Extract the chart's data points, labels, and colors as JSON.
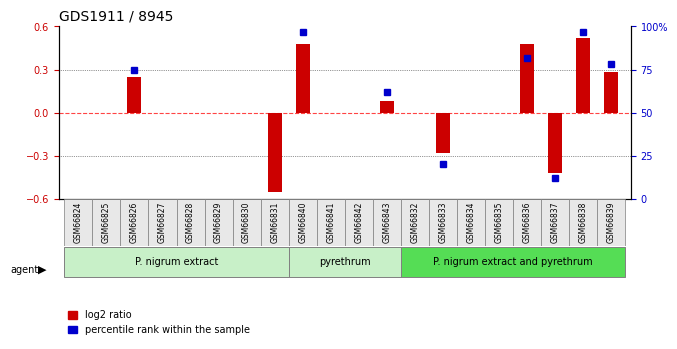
{
  "title": "GDS1911 / 8945",
  "samples": [
    "GSM66824",
    "GSM66825",
    "GSM66826",
    "GSM66827",
    "GSM66828",
    "GSM66829",
    "GSM66830",
    "GSM66831",
    "GSM66840",
    "GSM66841",
    "GSM66842",
    "GSM66843",
    "GSM66832",
    "GSM66833",
    "GSM66834",
    "GSM66835",
    "GSM66836",
    "GSM66837",
    "GSM66838",
    "GSM66839"
  ],
  "log2_ratio": [
    0,
    0,
    0.25,
    0,
    0,
    0,
    0,
    -0.55,
    0.48,
    0,
    0,
    0.08,
    0,
    -0.28,
    0,
    0,
    0.48,
    -0.42,
    0.52,
    0.28
  ],
  "percentile": [
    null,
    null,
    75,
    null,
    null,
    null,
    null,
    null,
    97,
    null,
    null,
    62,
    null,
    20,
    null,
    null,
    82,
    12,
    97,
    78
  ],
  "groups": [
    {
      "label": "P. nigrum extract",
      "start": 0,
      "end": 7,
      "color": "#90EE90"
    },
    {
      "label": "pyrethrum",
      "start": 8,
      "end": 11,
      "color": "#90EE90"
    },
    {
      "label": "P. nigrum extract and pyrethrum",
      "start": 12,
      "end": 19,
      "color": "#32CD32"
    }
  ],
  "bar_color": "#CC0000",
  "dot_color": "#0000CC",
  "zero_line_color": "#FF4444",
  "grid_color": "#333333",
  "ylim": [
    -0.6,
    0.6
  ],
  "yticks_left": [
    -0.6,
    -0.3,
    0,
    0.3,
    0.6
  ],
  "yticks_right": [
    0,
    25,
    50,
    75,
    100
  ],
  "background_color": "#ffffff"
}
